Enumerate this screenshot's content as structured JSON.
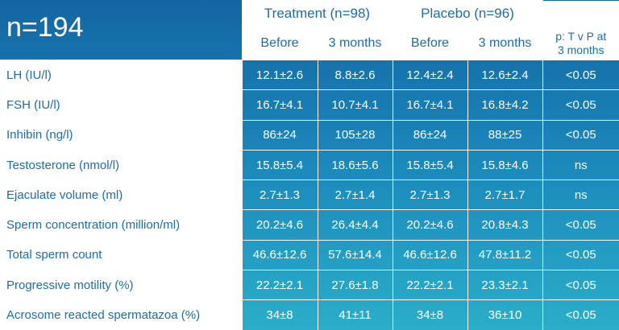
{
  "title": "n=194",
  "groups": [
    {
      "label": "Treatment (n=98)"
    },
    {
      "label": "Placebo (n=96)"
    }
  ],
  "subheaders": [
    "Before",
    "3 months",
    "Before",
    "3 months"
  ],
  "p_header": {
    "line1": "p: T v P at",
    "line2": "3 months"
  },
  "rows": [
    {
      "label": "LH (IU/l)",
      "values": [
        "12.1±2.6",
        "8.8±2.6",
        "12.4±2.4",
        "12.6±2.4"
      ],
      "p": "<0.05"
    },
    {
      "label": "FSH (IU/l)",
      "values": [
        "16.7±4.1",
        "10.7±4.1",
        "16.7±4.1",
        "16.8±4.2"
      ],
      "p": "<0.05"
    },
    {
      "label": "Inhibin (ng/l)",
      "values": [
        "86±24",
        "105±28",
        "86±24",
        "88±25"
      ],
      "p": "<0.05"
    },
    {
      "label": "Testosterone (nmol/l)",
      "values": [
        "15.8±5.4",
        "18.6±5.6",
        "15.8±5.4",
        "15.8±4.6"
      ],
      "p": "ns"
    },
    {
      "label": "Ejaculate volume (ml)",
      "values": [
        "2.7±1.3",
        "2.7±1.4",
        "2.7±1.3",
        "2.7±1.7"
      ],
      "p": "ns"
    },
    {
      "label": "Sperm concentration (million/ml)",
      "values": [
        "20.2±4.6",
        "26.4±4.4",
        "20.2±4.6",
        "20.8±4.3"
      ],
      "p": "<0.05"
    },
    {
      "label": "Total sperm count",
      "values": [
        "46.6±12.6",
        "57.6±14.4",
        "46.6±12.6",
        "47.8±11.2"
      ],
      "p": "<0.05"
    },
    {
      "label": "Progressive motility (%)",
      "values": [
        "22.2±2.1",
        "27.6±1.8",
        "22.2±2.1",
        "23.3±2.1"
      ],
      "p": "<0.05"
    },
    {
      "label": "Acrosome reacted spermatazoa (%)",
      "values": [
        "34±8",
        "41±11",
        "34±8",
        "36±10"
      ],
      "p": "<0.05"
    }
  ]
}
